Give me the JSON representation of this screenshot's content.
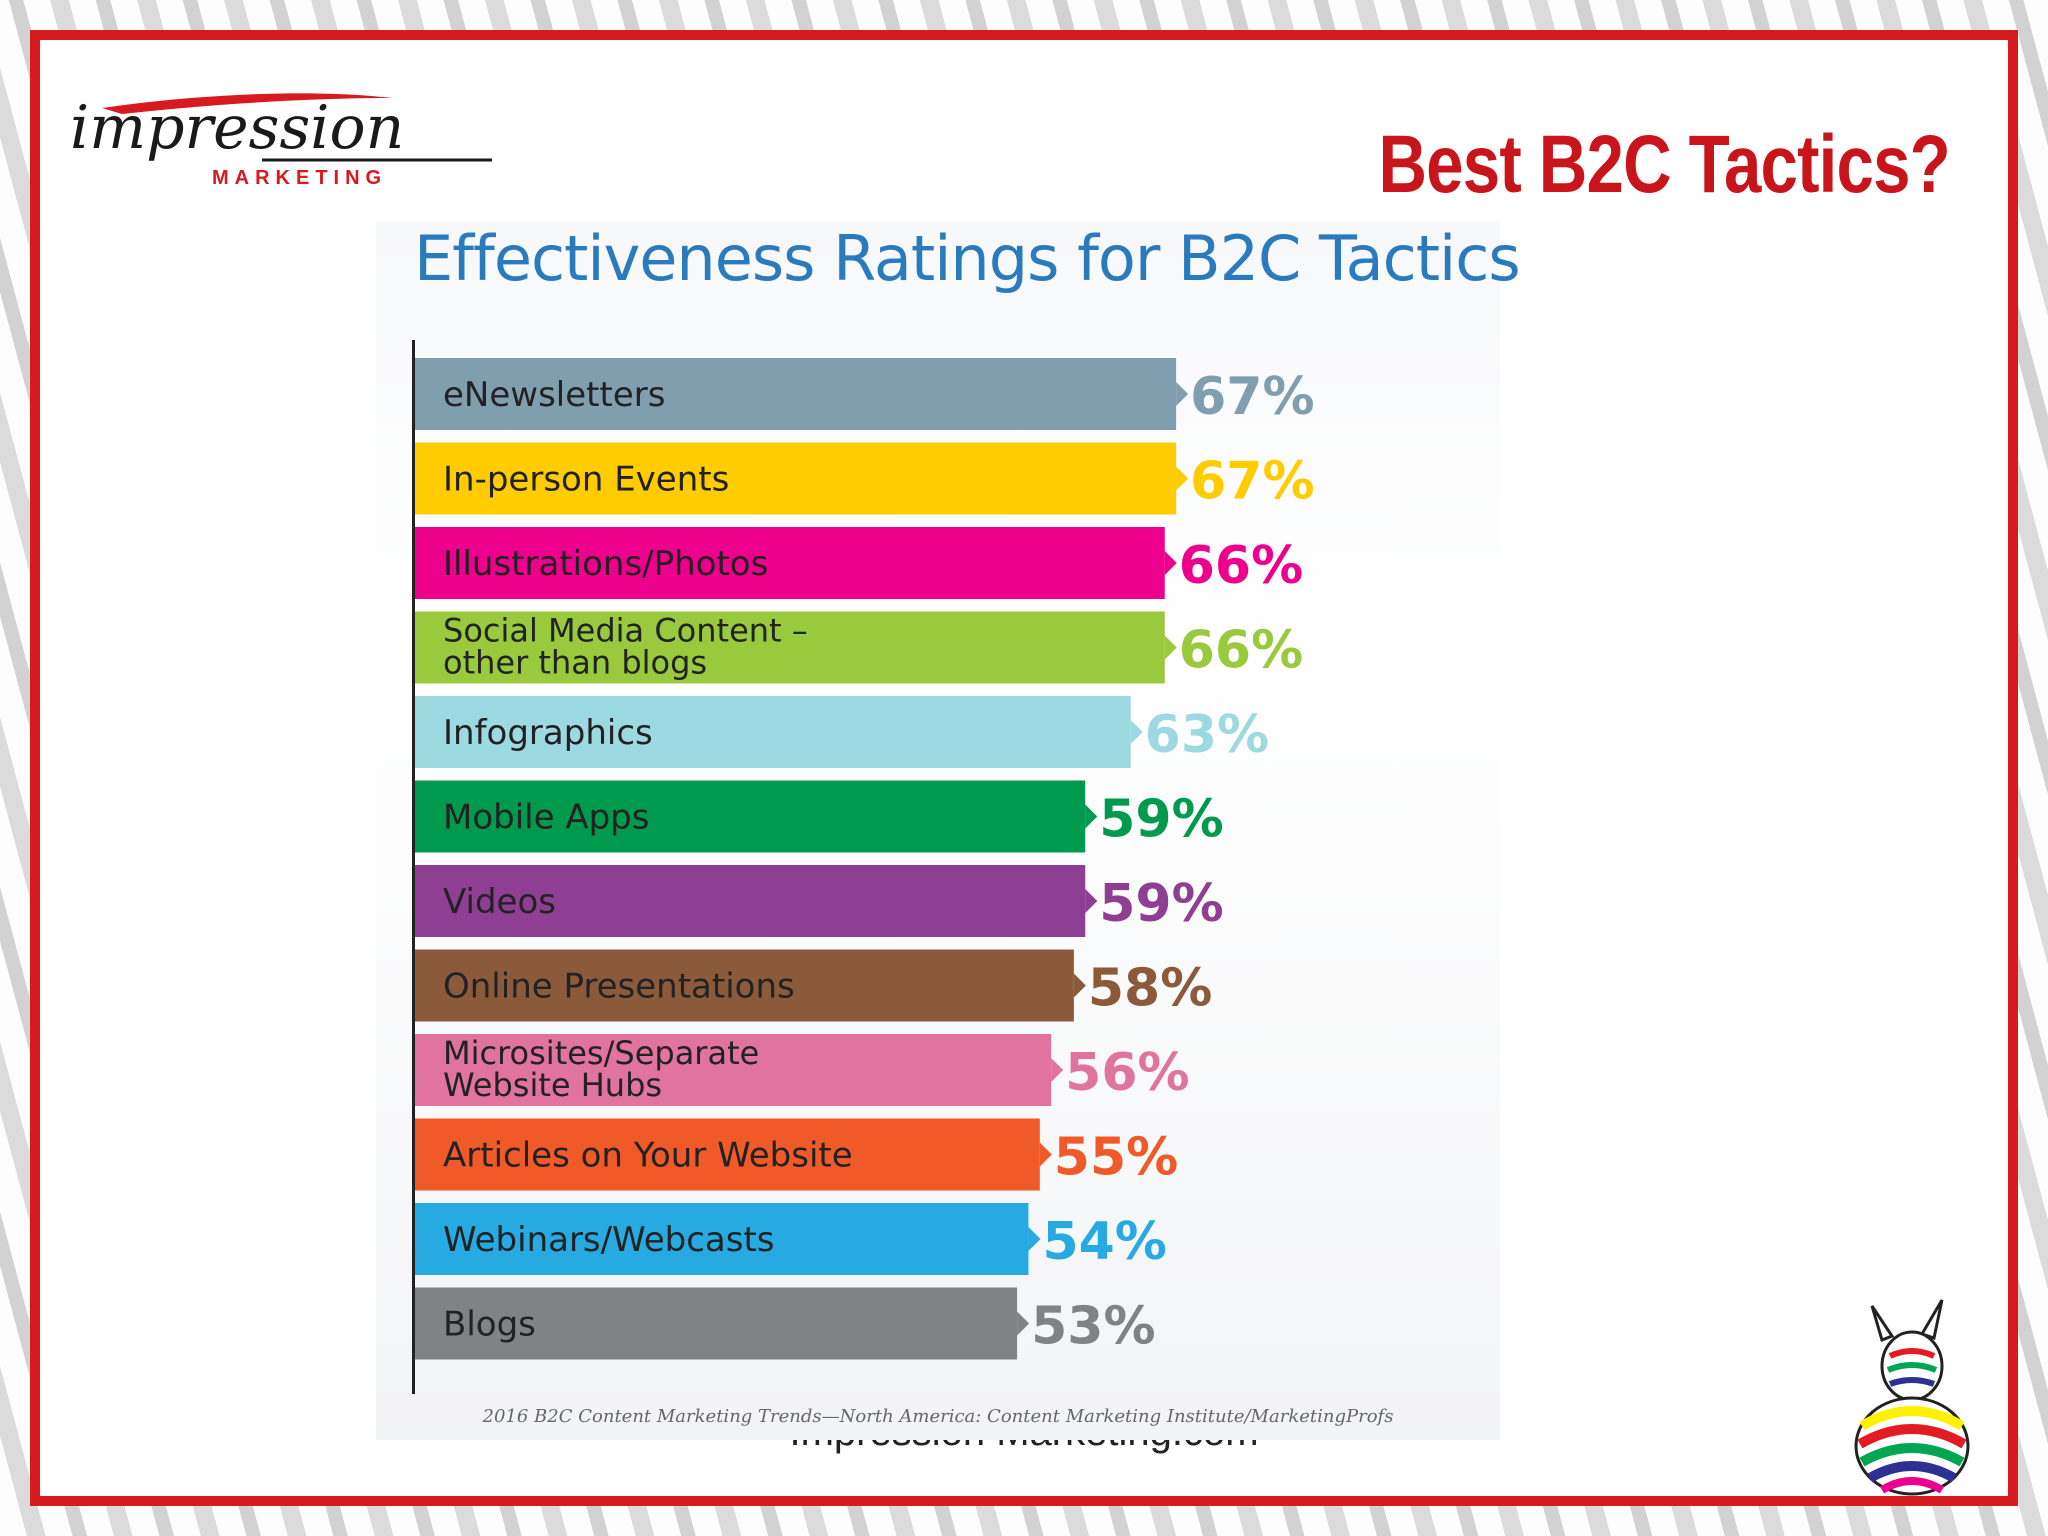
{
  "slide": {
    "title": "Best B2C Tactics?",
    "footer": "Impression Marketing.com",
    "logo": {
      "main": "impression",
      "sub": "MARKETING"
    }
  },
  "colors": {
    "frame": "#d71920",
    "slide_title": "#c8141b",
    "chart_title": "#2a7bbd"
  },
  "chart_data": {
    "type": "bar",
    "orientation": "horizontal",
    "title": "Effectiveness Ratings for B2C Tactics",
    "source": "2016 B2C Content Marketing Trends—North America: Content Marketing Institute/MarketingProfs",
    "xlim": [
      0,
      100
    ],
    "bars": [
      {
        "label": [
          "eNewsletters"
        ],
        "value": 67,
        "value_label": "67%",
        "color": "#7f9fae"
      },
      {
        "label": [
          "In-person Events"
        ],
        "value": 67,
        "value_label": "67%",
        "color": "#ffcc00"
      },
      {
        "label": [
          "Illustrations/Photos"
        ],
        "value": 66,
        "value_label": "66%",
        "color": "#ec008c"
      },
      {
        "label": [
          "Social Media Content –",
          "other than blogs"
        ],
        "value": 66,
        "value_label": "66%",
        "color": "#99c93c"
      },
      {
        "label": [
          "Infographics"
        ],
        "value": 63,
        "value_label": "63%",
        "color": "#9dd9e0"
      },
      {
        "label": [
          "Mobile Apps"
        ],
        "value": 59,
        "value_label": "59%",
        "color": "#009a4e"
      },
      {
        "label": [
          "Videos"
        ],
        "value": 59,
        "value_label": "59%",
        "color": "#8e3e93"
      },
      {
        "label": [
          "Online Presentations"
        ],
        "value": 58,
        "value_label": "58%",
        "color": "#8b5a3a"
      },
      {
        "label": [
          "Microsites/Separate",
          "Website Hubs"
        ],
        "value": 56,
        "value_label": "56%",
        "color": "#e0749f"
      },
      {
        "label": [
          "Articles on Your Website"
        ],
        "value": 55,
        "value_label": "55%",
        "color": "#f05a28"
      },
      {
        "label": [
          "Webinars/Webcasts"
        ],
        "value": 54,
        "value_label": "54%",
        "color": "#27aae1"
      },
      {
        "label": [
          "Blogs"
        ],
        "value": 53,
        "value_label": "53%",
        "color": "#808285"
      }
    ]
  }
}
